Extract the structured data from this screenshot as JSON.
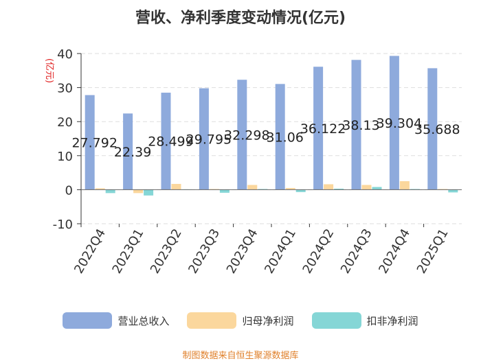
{
  "title": "营收、净利季度变动情况(亿元)",
  "source_note": "制图数据来自恒生聚源数据库",
  "chart_data": {
    "type": "bar",
    "ylabel": "(亿元)",
    "ylim": [
      -10,
      40
    ],
    "yticks": [
      -10,
      0,
      10,
      20,
      30,
      40
    ],
    "grid": true,
    "legend_position": "bottom",
    "categories": [
      "2022Q4",
      "2023Q1",
      "2023Q2",
      "2023Q3",
      "2023Q4",
      "2024Q1",
      "2024Q2",
      "2024Q3",
      "2024Q4",
      "2025Q1"
    ],
    "series": [
      {
        "name": "营业总收入",
        "color": "#8eaadc",
        "values": [
          27.792,
          22.39,
          28.499,
          29.795,
          32.298,
          31.06,
          36.122,
          38.13,
          39.304,
          35.688
        ],
        "labels": [
          "27.792",
          "22.39",
          "28.499",
          "29.795",
          "32.298",
          "31.06",
          "36.122",
          "38.13",
          "39.304",
          "35.688"
        ]
      },
      {
        "name": "归母净利润",
        "color": "#fbd79d",
        "values": [
          0.4,
          -1.0,
          1.7,
          0.2,
          1.4,
          0.5,
          1.6,
          1.4,
          2.5,
          0.2
        ]
      },
      {
        "name": "扣非净利润",
        "color": "#85d6d6",
        "values": [
          -1.0,
          -1.7,
          0.1,
          -0.9,
          0.2,
          -0.7,
          0.3,
          0.8,
          0.2,
          -0.8
        ]
      }
    ]
  }
}
